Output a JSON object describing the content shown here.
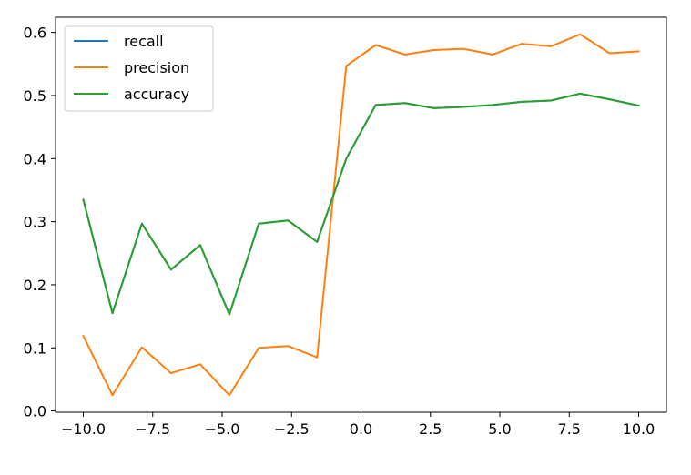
{
  "chart_data": {
    "type": "line",
    "title": "",
    "xlabel": "",
    "ylabel": "",
    "xlim": [
      -11.0,
      11.0
    ],
    "ylim": [
      -0.002,
      0.624
    ],
    "xticks": [
      -10.0,
      -7.5,
      -5.0,
      -2.5,
      0.0,
      2.5,
      5.0,
      7.5,
      10.0
    ],
    "xtick_labels": [
      "−10.0",
      "−7.5",
      "−5.0",
      "−2.5",
      "0.0",
      "2.5",
      "5.0",
      "7.5",
      "10.0"
    ],
    "yticks": [
      0.0,
      0.1,
      0.2,
      0.3,
      0.4,
      0.5,
      0.6
    ],
    "ytick_labels": [
      "0.0",
      "0.1",
      "0.2",
      "0.3",
      "0.4",
      "0.5",
      "0.6"
    ],
    "grid": false,
    "legend_position": "upper-left",
    "x": [
      -10.0,
      -8.95,
      -7.89,
      -6.84,
      -5.79,
      -4.74,
      -3.68,
      -2.63,
      -1.58,
      -0.53,
      0.53,
      1.58,
      2.63,
      3.68,
      4.74,
      5.79,
      6.84,
      7.89,
      8.95,
      10.0
    ],
    "series": [
      {
        "name": "recall",
        "color": "#1f77b4",
        "values": [
          0.335,
          0.155,
          0.297,
          0.224,
          0.263,
          0.153,
          0.297,
          0.302,
          0.268,
          0.4,
          0.485,
          0.488,
          0.48,
          0.482,
          0.485,
          0.49,
          0.492,
          0.503,
          0.494,
          0.484
        ]
      },
      {
        "name": "precision",
        "color": "#ff7f0e",
        "values": [
          0.119,
          0.025,
          0.101,
          0.06,
          0.074,
          0.025,
          0.1,
          0.103,
          0.085,
          0.547,
          0.58,
          0.565,
          0.572,
          0.574,
          0.565,
          0.582,
          0.578,
          0.597,
          0.567,
          0.57
        ]
      },
      {
        "name": "accuracy",
        "color": "#2ca02c",
        "values": [
          0.335,
          0.155,
          0.297,
          0.224,
          0.263,
          0.153,
          0.297,
          0.302,
          0.268,
          0.4,
          0.485,
          0.488,
          0.48,
          0.482,
          0.485,
          0.49,
          0.492,
          0.503,
          0.494,
          0.484
        ]
      }
    ]
  }
}
